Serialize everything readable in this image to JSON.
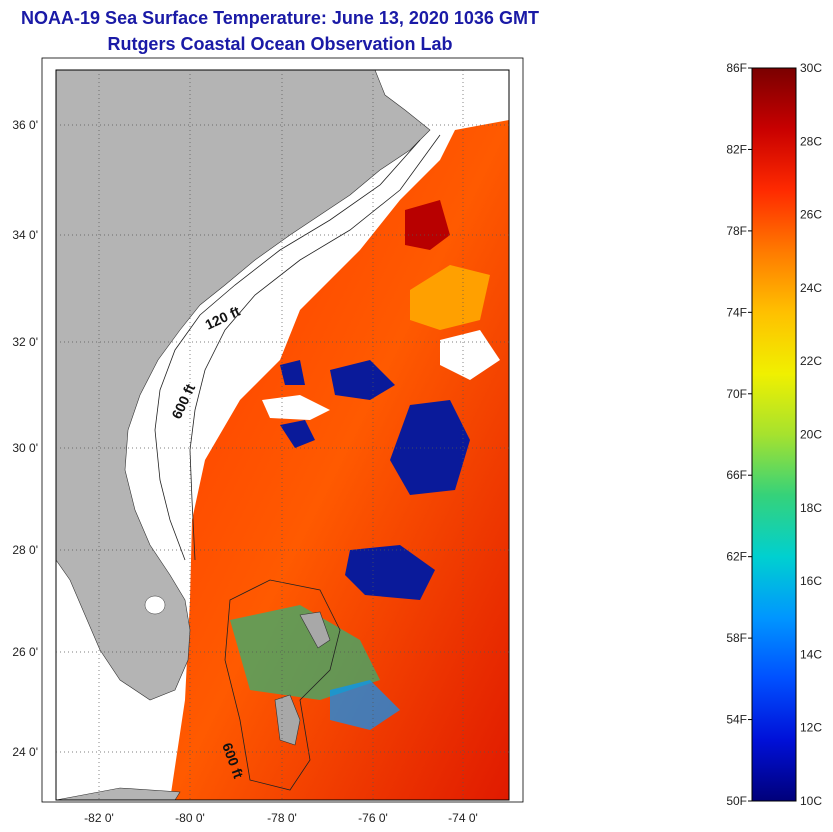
{
  "title": "NOAA-19 Sea Surface Temperature:  June 13, 2020 1036 GMT",
  "subtitle": "Rutgers Coastal Ocean Observation Lab",
  "map": {
    "lat_labels": [
      "36 0'",
      "34 0'",
      "32 0'",
      "30 0'",
      "28 0'",
      "26 0'",
      "24 0'"
    ],
    "lon_labels": [
      "-82 0'",
      "-80 0'",
      "-78 0'",
      "-76 0'",
      "-74 0'"
    ],
    "contour_labels": [
      "120 ft",
      "600 ft",
      "600 ft"
    ]
  },
  "colorbar": {
    "fahrenheit_labels": [
      "86F",
      "82F",
      "78F",
      "74F",
      "70F",
      "66F",
      "62F",
      "58F",
      "54F",
      "50F"
    ],
    "celsius_labels": [
      "30C",
      "28C",
      "26C",
      "24C",
      "22C",
      "20C",
      "18C",
      "16C",
      "14C",
      "12C",
      "10C"
    ],
    "colors": [
      "#7a0000",
      "#c80000",
      "#ff2a00",
      "#ff7a00",
      "#ffc000",
      "#f0f000",
      "#a6e22e",
      "#35d27a",
      "#00d0d0",
      "#0096ff",
      "#0050ff",
      "#0010d8",
      "#00007a"
    ]
  }
}
